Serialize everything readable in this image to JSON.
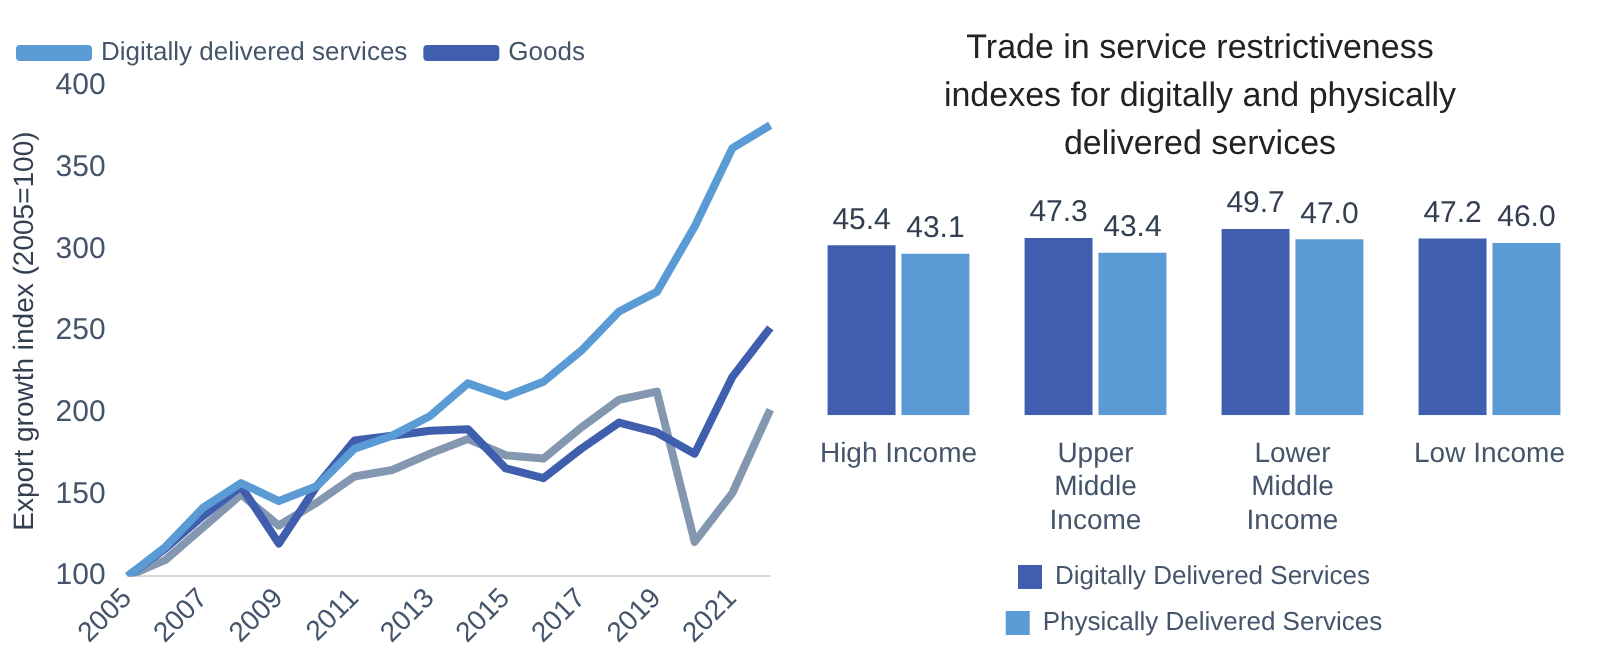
{
  "chart_data": [
    {
      "type": "line",
      "ylabel": "Export growth index (2005=100)",
      "categories": [
        "2005",
        null,
        "2007",
        null,
        "2009",
        null,
        "2011",
        null,
        "2013",
        null,
        "2015",
        null,
        "2017",
        null,
        "2019",
        null,
        "2021",
        null
      ],
      "series": [
        {
          "name": "Digitally delivered services",
          "color": "#5b9bd5",
          "values": [
            100,
            118,
            142,
            157,
            146,
            155,
            178,
            186,
            198,
            218,
            210,
            219,
            238,
            262,
            274,
            314,
            362,
            376
          ]
        },
        {
          "name": "Goods",
          "color": "#3f5fae",
          "values": [
            100,
            117,
            137,
            155,
            120,
            155,
            183,
            186,
            189,
            190,
            166,
            160,
            178,
            194,
            188,
            175,
            222,
            252
          ]
        },
        {
          "color": "#8497b0",
          "values": [
            100,
            110,
            130,
            150,
            131,
            145,
            161,
            165,
            175,
            184,
            174,
            172,
            191,
            208,
            213,
            121,
            151,
            202
          ]
        }
      ],
      "ylim": [
        100,
        400
      ],
      "yticks": [
        100,
        150,
        200,
        250,
        300,
        350,
        400
      ],
      "grid": false,
      "legend": "top left",
      "marker": "none",
      "line_style": "solid"
    },
    {
      "type": "bar",
      "title": "Trade in service restrictiveness indexes for digitally and physically delivered services",
      "categories": [
        "High Income",
        "Upper Middle Income",
        "Lower Middle Income",
        "Low Income"
      ],
      "series": [
        {
          "name": "Digitally Delivered Services",
          "color": "#3f5fae",
          "values": [
            45.4,
            47.3,
            49.7,
            47.2
          ],
          "value_labels": [
            "45.4",
            "47.3",
            "49.7",
            "47.2"
          ]
        },
        {
          "name": "Physically Delivered Services",
          "color": "#5b9bd5",
          "values": [
            43.1,
            43.4,
            47.0,
            46.0
          ],
          "value_labels": [
            "43.1",
            "43.4",
            "47.0",
            "46.0"
          ]
        }
      ],
      "tick_labels": "x",
      "grid": false,
      "legend": "bottom"
    }
  ]
}
